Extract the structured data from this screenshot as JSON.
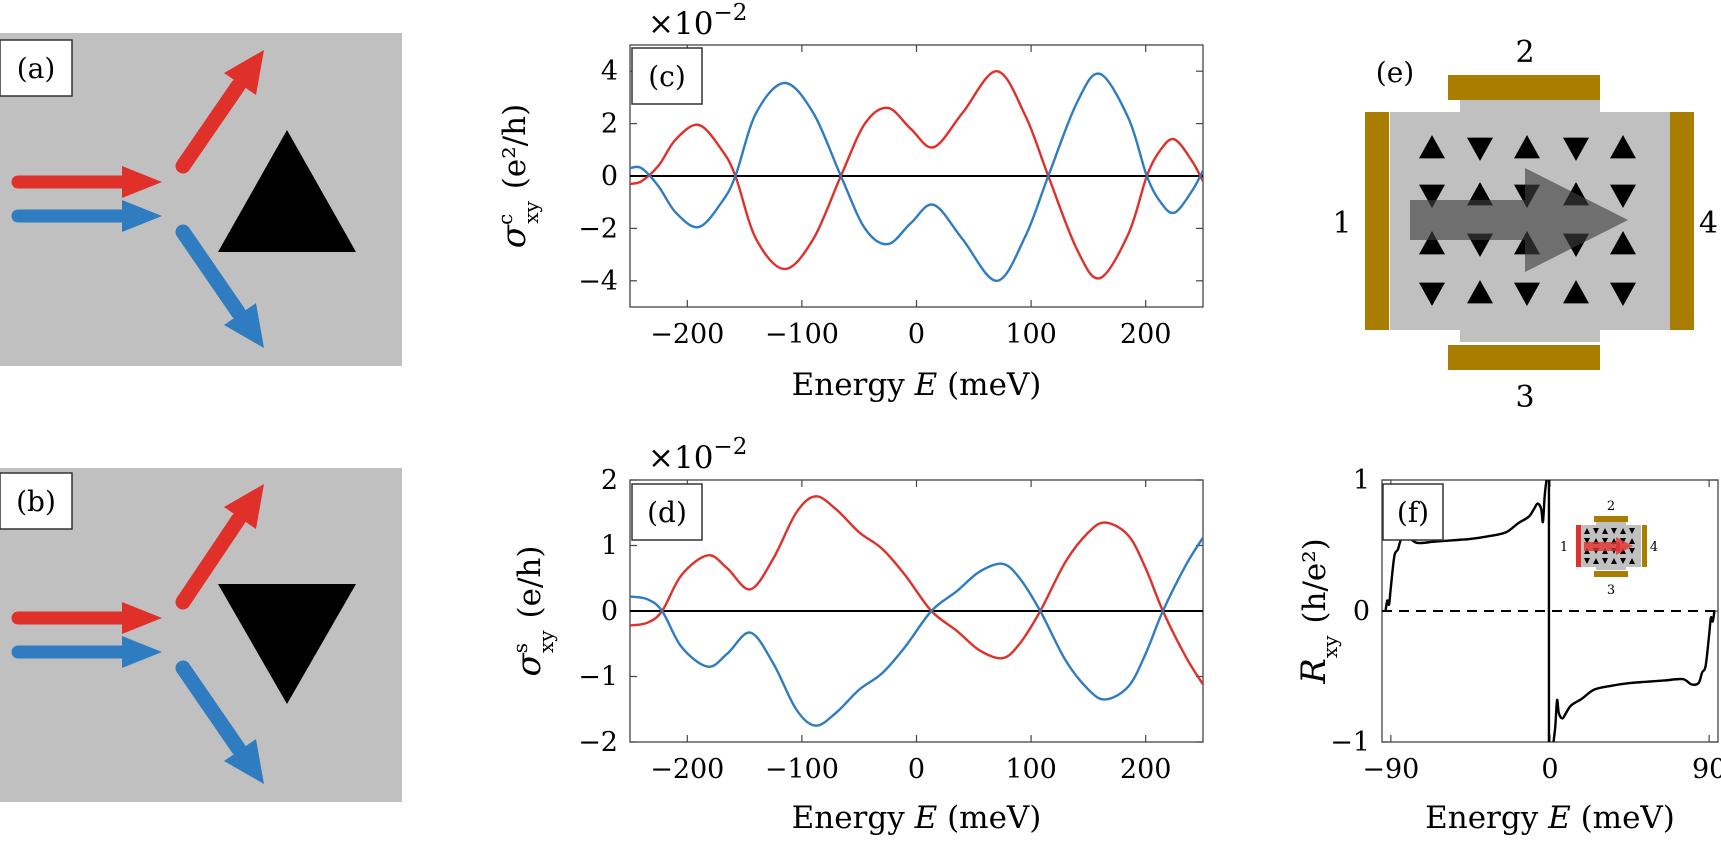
{
  "colors": {
    "red": "#e0302a",
    "blue": "#2f7cc1",
    "gray_panel": "#c0c0c0",
    "gold": "#a87d00",
    "black": "#000000"
  },
  "panels": {
    "a": {
      "label": "(a)",
      "triangle": "up"
    },
    "b": {
      "label": "(b)",
      "triangle": "down"
    },
    "e": {
      "label": "(e)",
      "contacts": [
        "1",
        "2",
        "3",
        "4"
      ],
      "triangle_rows": [
        [
          "up",
          "down",
          "up",
          "down",
          "up"
        ],
        [
          "down",
          "up",
          "down",
          "up",
          "down"
        ],
        [
          "up",
          "down",
          "up",
          "down",
          "up"
        ],
        [
          "down",
          "up",
          "down",
          "up",
          "down"
        ]
      ]
    }
  },
  "chart_data": [
    {
      "id": "c",
      "type": "line",
      "panel_label": "(c)",
      "multiplier": "×10",
      "multiplier_exp": "−2",
      "xlabel": "Energy",
      "xvar": "E",
      "xunit": "(meV)",
      "ylabel_sym": "σ",
      "ylabel_sup": "c",
      "ylabel_sub": "xy",
      "ylabel_unit": "(e²/h)",
      "xlim": [
        -250,
        250
      ],
      "ylim": [
        -5,
        5
      ],
      "xticks": [
        -200,
        -100,
        0,
        100,
        200
      ],
      "xtick_labels": [
        "−200",
        "−100",
        "0",
        "100",
        "200"
      ],
      "yticks": [
        -4,
        -2,
        0,
        2,
        4
      ],
      "ytick_labels": [
        "−4",
        "−2",
        "0",
        "2",
        "4"
      ],
      "zero_line": "solid",
      "series": [
        {
          "color": "#e0302a",
          "x": [
            -250,
            -240,
            -225,
            -210,
            -190,
            -170,
            -158,
            -140,
            -115,
            -90,
            -66,
            -45,
            -25,
            -5,
            15,
            40,
            70,
            95,
            115,
            140,
            160,
            185,
            201,
            213,
            225,
            240,
            250
          ],
          "y": [
            -0.3,
            -0.2,
            0.4,
            1.4,
            1.95,
            1.0,
            0.0,
            -2.4,
            -3.55,
            -2.4,
            0.0,
            2.0,
            2.6,
            1.8,
            1.1,
            2.4,
            4.0,
            2.3,
            0.0,
            -2.8,
            -3.9,
            -2.2,
            0.0,
            1.0,
            1.4,
            0.6,
            -0.2
          ]
        },
        {
          "color": "#2f7cc1",
          "x": [
            -250,
            -240,
            -225,
            -210,
            -190,
            -170,
            -158,
            -140,
            -115,
            -90,
            -66,
            -45,
            -25,
            -5,
            15,
            40,
            70,
            95,
            115,
            140,
            160,
            185,
            201,
            213,
            225,
            240,
            250
          ],
          "y": [
            0.3,
            0.3,
            -0.4,
            -1.4,
            -1.95,
            -1.0,
            0.0,
            2.4,
            3.55,
            2.4,
            0.0,
            -2.0,
            -2.6,
            -1.8,
            -1.1,
            -2.4,
            -4.0,
            -2.3,
            0.0,
            2.8,
            3.9,
            2.2,
            0.0,
            -1.0,
            -1.4,
            -0.6,
            0.2
          ]
        }
      ]
    },
    {
      "id": "d",
      "type": "line",
      "panel_label": "(d)",
      "multiplier": "×10",
      "multiplier_exp": "−2",
      "xlabel": "Energy",
      "xvar": "E",
      "xunit": "(meV)",
      "ylabel_sym": "σ",
      "ylabel_sup": "s",
      "ylabel_sub": "xy",
      "ylabel_unit": "(e/h)",
      "xlim": [
        -250,
        250
      ],
      "ylim": [
        -2,
        2
      ],
      "xticks": [
        -200,
        -100,
        0,
        100,
        200
      ],
      "xtick_labels": [
        "−200",
        "−100",
        "0",
        "100",
        "200"
      ],
      "yticks": [
        -2,
        -1,
        0,
        1,
        2
      ],
      "ytick_labels": [
        "−2",
        "−1",
        "0",
        "1",
        "2"
      ],
      "zero_line": "solid",
      "series": [
        {
          "color": "#e0302a",
          "x": [
            -250,
            -235,
            -222,
            -205,
            -182,
            -165,
            -145,
            -125,
            -105,
            -88,
            -70,
            -50,
            -30,
            -10,
            13,
            35,
            55,
            75,
            90,
            108,
            130,
            150,
            165,
            185,
            200,
            215,
            235,
            250
          ],
          "y": [
            -0.22,
            -0.18,
            0.0,
            0.55,
            0.85,
            0.65,
            0.33,
            0.8,
            1.5,
            1.75,
            1.55,
            1.2,
            0.95,
            0.55,
            0.0,
            -0.3,
            -0.6,
            -0.72,
            -0.5,
            0.0,
            0.75,
            1.2,
            1.35,
            1.15,
            0.65,
            0.0,
            -0.7,
            -1.12
          ]
        },
        {
          "color": "#2f7cc1",
          "x": [
            -250,
            -235,
            -222,
            -205,
            -182,
            -165,
            -145,
            -125,
            -105,
            -88,
            -70,
            -50,
            -30,
            -10,
            13,
            35,
            55,
            75,
            90,
            108,
            130,
            150,
            165,
            185,
            200,
            215,
            235,
            250
          ],
          "y": [
            0.22,
            0.18,
            0.0,
            -0.55,
            -0.85,
            -0.65,
            -0.33,
            -0.8,
            -1.5,
            -1.75,
            -1.55,
            -1.2,
            -0.95,
            -0.55,
            0.0,
            0.3,
            0.6,
            0.72,
            0.5,
            0.0,
            -0.75,
            -1.2,
            -1.35,
            -1.15,
            -0.65,
            0.0,
            0.7,
            1.12
          ]
        }
      ]
    },
    {
      "id": "f",
      "type": "line",
      "panel_label": "(f)",
      "xlabel": "Energy",
      "xvar": "E",
      "xunit": "(meV)",
      "ylabel_sym": "R",
      "ylabel_sub": "xy",
      "ylabel_unit": "(h/e²)",
      "xlim": [
        -95,
        95
      ],
      "ylim": [
        -1,
        1
      ],
      "xticks": [
        -90,
        0,
        90
      ],
      "xtick_labels": [
        "−90",
        "0",
        "90"
      ],
      "yticks": [
        -1,
        0,
        1
      ],
      "ytick_labels": [
        "−1",
        "0",
        "1"
      ],
      "zero_line": "dashed",
      "inset_contacts": [
        "1",
        "2",
        "3",
        "4"
      ],
      "series": [
        {
          "color": "#000000",
          "side": "left",
          "x": [
            -93,
            -92,
            -91,
            -90,
            -88,
            -86,
            -84,
            -80,
            -75,
            -65,
            -55,
            -45,
            -35,
            -25,
            -18,
            -12,
            -9,
            -7,
            -5,
            -4,
            -3,
            -2
          ],
          "y": [
            0.0,
            0.08,
            0.05,
            0.18,
            0.42,
            0.47,
            0.55,
            0.56,
            0.52,
            0.53,
            0.54,
            0.55,
            0.57,
            0.6,
            0.67,
            0.72,
            0.78,
            0.82,
            0.78,
            0.68,
            0.88,
            1.0
          ]
        },
        {
          "color": "#000000",
          "side": "right",
          "x": [
            2,
            3,
            4,
            5,
            7,
            9,
            12,
            18,
            25,
            35,
            45,
            55,
            65,
            75,
            80,
            84,
            86,
            88,
            90,
            91,
            92,
            93
          ],
          "y": [
            -1.0,
            -0.88,
            -0.68,
            -0.78,
            -0.82,
            -0.78,
            -0.72,
            -0.67,
            -0.6,
            -0.57,
            -0.55,
            -0.54,
            -0.53,
            -0.52,
            -0.56,
            -0.55,
            -0.47,
            -0.42,
            -0.18,
            -0.05,
            -0.08,
            0.0
          ]
        },
        {
          "color": "#000000",
          "side": "center",
          "x": [
            -0.6,
            -0.6
          ],
          "y": [
            1.0,
            -1.0
          ]
        }
      ]
    }
  ]
}
